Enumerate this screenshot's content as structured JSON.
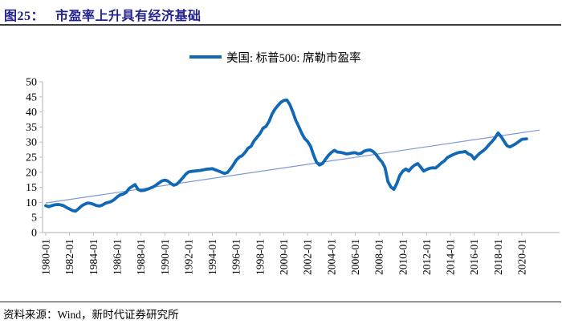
{
  "figure": {
    "id_label": "图25：",
    "title": "市盈率上升具有经济基础",
    "source": "资料来源：Wind，新时代证券研究所"
  },
  "colors": {
    "series_blue": "#1168B5",
    "trendline_blue": "#7E97D6",
    "title_navy": "#22228F",
    "axis_gray": "#BFBFBF",
    "text_black": "#000000"
  },
  "chart_data": {
    "type": "line",
    "title": "",
    "xlabel": "",
    "ylabel": "",
    "grid": "off",
    "legend": {
      "position": "top-center",
      "entries": [
        "美国: 标普500: 席勒市盈率"
      ]
    },
    "y_axis": {
      "min": 0,
      "max": 50,
      "tick_step": 5,
      "ticks": [
        0,
        5,
        10,
        15,
        20,
        25,
        30,
        35,
        40,
        45,
        50
      ]
    },
    "x_axis": {
      "tick_labels": [
        "1980-01",
        "1982-01",
        "1984-01",
        "1986-01",
        "1988-01",
        "1990-01",
        "1992-01",
        "1994-01",
        "1996-01",
        "1998-01",
        "2000-01",
        "2002-01",
        "2004-01",
        "2006-01",
        "2008-01",
        "2010-01",
        "2012-01",
        "2014-01",
        "2016-01",
        "2018-01",
        "2020-01"
      ],
      "label_rotation_deg": -90,
      "start_year": 1980,
      "tick_interval_years": 2
    },
    "series": [
      {
        "name": "美国: 标普500: 席勒市盈率",
        "role": "main",
        "color": "#1168B5",
        "stroke_width": 3.8,
        "x": [
          1980,
          1980.25,
          1980.5,
          1980.75,
          1981,
          1981.25,
          1981.5,
          1981.75,
          1982,
          1982.25,
          1982.5,
          1982.75,
          1983,
          1983.25,
          1983.5,
          1983.75,
          1984,
          1984.25,
          1984.5,
          1984.75,
          1985,
          1985.25,
          1985.5,
          1985.75,
          1986,
          1986.25,
          1986.5,
          1986.75,
          1987,
          1987.25,
          1987.5,
          1987.75,
          1988,
          1988.25,
          1988.5,
          1988.75,
          1989,
          1989.25,
          1989.5,
          1989.75,
          1990,
          1990.25,
          1990.5,
          1990.75,
          1991,
          1991.25,
          1991.5,
          1991.75,
          1992,
          1992.25,
          1992.5,
          1992.75,
          1993,
          1993.25,
          1993.5,
          1993.75,
          1994,
          1994.25,
          1994.5,
          1994.75,
          1995,
          1995.25,
          1995.5,
          1995.75,
          1996,
          1996.25,
          1996.5,
          1996.75,
          1997,
          1997.25,
          1997.5,
          1997.75,
          1998,
          1998.25,
          1998.5,
          1998.75,
          1999,
          1999.25,
          1999.5,
          1999.75,
          2000,
          2000.25,
          2000.5,
          2000.75,
          2001,
          2001.25,
          2001.5,
          2001.75,
          2002,
          2002.25,
          2002.5,
          2002.75,
          2003,
          2003.25,
          2003.5,
          2003.75,
          2004,
          2004.25,
          2004.5,
          2004.75,
          2005,
          2005.25,
          2005.5,
          2005.75,
          2006,
          2006.25,
          2006.5,
          2006.75,
          2007,
          2007.25,
          2007.5,
          2007.75,
          2008,
          2008.25,
          2008.5,
          2008.75,
          2009,
          2009.25,
          2009.5,
          2009.75,
          2010,
          2010.25,
          2010.5,
          2010.75,
          2011,
          2011.25,
          2011.5,
          2011.75,
          2012,
          2012.25,
          2012.5,
          2012.75,
          2013,
          2013.25,
          2013.5,
          2013.75,
          2014,
          2014.25,
          2014.5,
          2014.75,
          2015,
          2015.25,
          2015.5,
          2015.75,
          2016,
          2016.25,
          2016.5,
          2016.75,
          2017,
          2017.25,
          2017.5,
          2017.75,
          2018,
          2018.25,
          2018.5,
          2018.75,
          2019,
          2019.25,
          2019.5,
          2019.75,
          2020,
          2020.4
        ],
        "values": [
          8.9,
          8.6,
          8.9,
          9.2,
          9.3,
          9.2,
          8.9,
          8.3,
          7.8,
          7.3,
          7.1,
          7.9,
          8.8,
          9.4,
          9.8,
          9.7,
          9.4,
          9.0,
          8.8,
          9.1,
          9.7,
          10.0,
          10.3,
          10.9,
          11.8,
          12.5,
          12.8,
          13.3,
          14.6,
          15.3,
          15.9,
          14.3,
          13.9,
          14.0,
          14.3,
          14.7,
          15.1,
          15.7,
          16.4,
          17.1,
          17.4,
          17.1,
          16.3,
          15.7,
          16.0,
          17.0,
          18.1,
          19.3,
          20.1,
          20.3,
          20.4,
          20.5,
          20.6,
          20.8,
          21.0,
          21.1,
          21.2,
          20.8,
          20.4,
          20.0,
          19.6,
          19.9,
          21.0,
          22.4,
          24.0,
          25.0,
          25.5,
          26.6,
          28.0,
          28.6,
          30.4,
          31.6,
          32.8,
          34.6,
          35.2,
          36.8,
          39.2,
          40.9,
          42.1,
          43.2,
          43.8,
          44.0,
          42.5,
          40.1,
          37.3,
          35.2,
          33.0,
          31.2,
          30.2,
          28.6,
          25.7,
          23.3,
          22.4,
          22.9,
          24.3,
          25.6,
          26.6,
          27.3,
          26.7,
          26.6,
          26.4,
          26.1,
          26.2,
          26.4,
          26.5,
          26.1,
          26.3,
          27.0,
          27.3,
          27.4,
          26.9,
          25.9,
          24.5,
          23.4,
          21.6,
          16.9,
          15.1,
          14.3,
          16.3,
          19.0,
          20.4,
          21.1,
          20.4,
          21.6,
          22.4,
          22.9,
          21.7,
          20.4,
          20.9,
          21.3,
          21.5,
          21.4,
          22.2,
          23.1,
          23.8,
          24.9,
          25.4,
          25.9,
          26.3,
          26.6,
          26.7,
          26.9,
          26.1,
          25.7,
          24.4,
          25.5,
          26.4,
          27.1,
          28.0,
          29.2,
          30.2,
          31.4,
          33.0,
          31.9,
          30.3,
          28.8,
          28.4,
          28.9,
          29.5,
          30.2,
          30.9,
          31.1
        ]
      },
      {
        "name": "线性趋势线",
        "role": "trendline",
        "color": "#7E97D6",
        "stroke_width": 1.2,
        "x": [
          1980,
          2021.5
        ],
        "values": [
          9.8,
          34.0
        ]
      }
    ]
  }
}
